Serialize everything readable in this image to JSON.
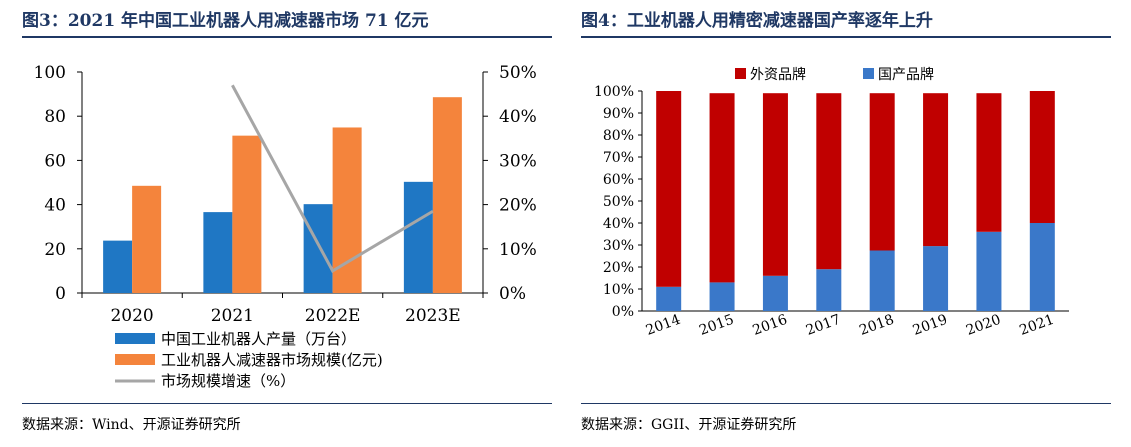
{
  "left": {
    "title": "图3：2021 年中国工业机器人用减速器市场 71 亿元",
    "source": "数据来源：Wind、开源证券研究所"
  },
  "right": {
    "title": "图4：工业机器人用精密减速器国产率逐年上升",
    "source": "数据来源：GGII、开源证券研究所"
  },
  "chart_data": [
    {
      "type": "bar",
      "categories": [
        "2020",
        "2021",
        "2022E",
        "2023E"
      ],
      "ylim": [
        0,
        100
      ],
      "yticks": [
        "0",
        "20",
        "40",
        "60",
        "80",
        "100"
      ],
      "y2lim": [
        0,
        50
      ],
      "y2ticks": [
        "0%",
        "10%",
        "20%",
        "30%",
        "40%",
        "50%"
      ],
      "series": [
        {
          "name": "中国工业机器人产量（万台）",
          "kind": "bar",
          "axis": "left",
          "color": "#1f77c4",
          "values": [
            23.7,
            36.6,
            40.2,
            50.3
          ]
        },
        {
          "name": "工业机器人减速器市场规模(亿元)",
          "kind": "bar",
          "axis": "left",
          "color": "#f4843c",
          "values": [
            48.5,
            71.2,
            74.9,
            88.6
          ]
        },
        {
          "name": "市场规模增速（%）",
          "kind": "line",
          "axis": "right",
          "color": "#a6a6a6",
          "values": [
            null,
            47.0,
            5.0,
            18.5
          ]
        }
      ],
      "grid": false,
      "legend": "bottom-left"
    },
    {
      "type": "bar",
      "stacked": true,
      "categories": [
        "2014",
        "2015",
        "2016",
        "2017",
        "2018",
        "2019",
        "2020",
        "2021"
      ],
      "ylim": [
        0,
        100
      ],
      "yticks": [
        "0%",
        "10%",
        "20%",
        "30%",
        "40%",
        "50%",
        "60%",
        "70%",
        "80%",
        "90%",
        "100%"
      ],
      "series": [
        {
          "name": "国产品牌",
          "color": "#3a78c9",
          "values": [
            11,
            13,
            16,
            19,
            27.5,
            29.5,
            36,
            40
          ]
        },
        {
          "name": "外资品牌",
          "color": "#c00000",
          "values": [
            89,
            86,
            83,
            80,
            71.5,
            69.5,
            63,
            60
          ]
        }
      ],
      "legend_order": [
        "外资品牌",
        "国产品牌"
      ],
      "grid": false,
      "legend": "top"
    }
  ]
}
